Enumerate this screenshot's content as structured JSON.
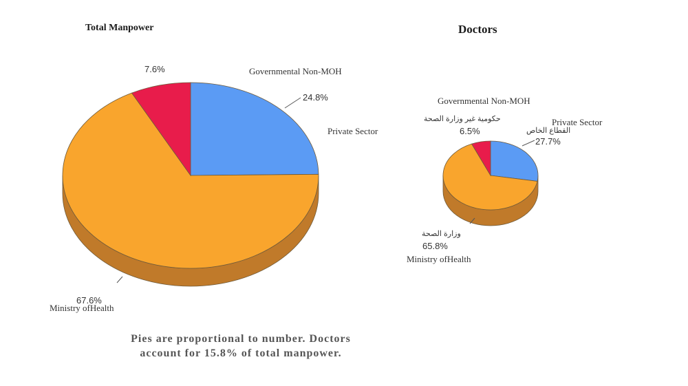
{
  "chart_data": [
    {
      "type": "pie",
      "title": "Total Manpower",
      "slices": [
        {
          "name": "Private Sector",
          "value": 24.8,
          "color": "#5b9bf4"
        },
        {
          "name": "Ministry of Health",
          "value": 67.6,
          "color": "#f9a52d"
        },
        {
          "name": "Governmental Non-MOH",
          "value": 7.6,
          "color": "#e81c4b"
        }
      ],
      "labels": {
        "gov_name": "Governmental Non-MOH",
        "gov_pct": "7.6%",
        "private_name": "Private Sector",
        "private_pct": "24.8%",
        "moh_name": "Ministry ofHealth",
        "moh_pct": "67.6%"
      }
    },
    {
      "type": "pie",
      "title": "Doctors",
      "slices": [
        {
          "name": "Private Sector",
          "value": 27.7,
          "color": "#5b9bf4"
        },
        {
          "name": "Ministry of Health",
          "value": 65.8,
          "color": "#f9a52d"
        },
        {
          "name": "Governmental Non-MOH",
          "value": 6.5,
          "color": "#e81c4b"
        }
      ],
      "labels": {
        "gov_name": "Governmental Non-MOH",
        "gov_arabic": "حكومية غير وزارة الصحة",
        "gov_pct": "6.5%",
        "private_name": "Private Sector",
        "private_arabic": "القطاع الخاص",
        "private_pct": "27.7%",
        "moh_arabic": "وزارة الصحة",
        "moh_pct": "65.8%",
        "moh_name": "Ministry ofHealth"
      }
    }
  ],
  "note_line1": "Pies are proportional to number. Doctors",
  "note_line2": "account for 15.8% of total manpower.",
  "colors": {
    "side": "#c07a2a",
    "outline": "#6e5a3a"
  }
}
